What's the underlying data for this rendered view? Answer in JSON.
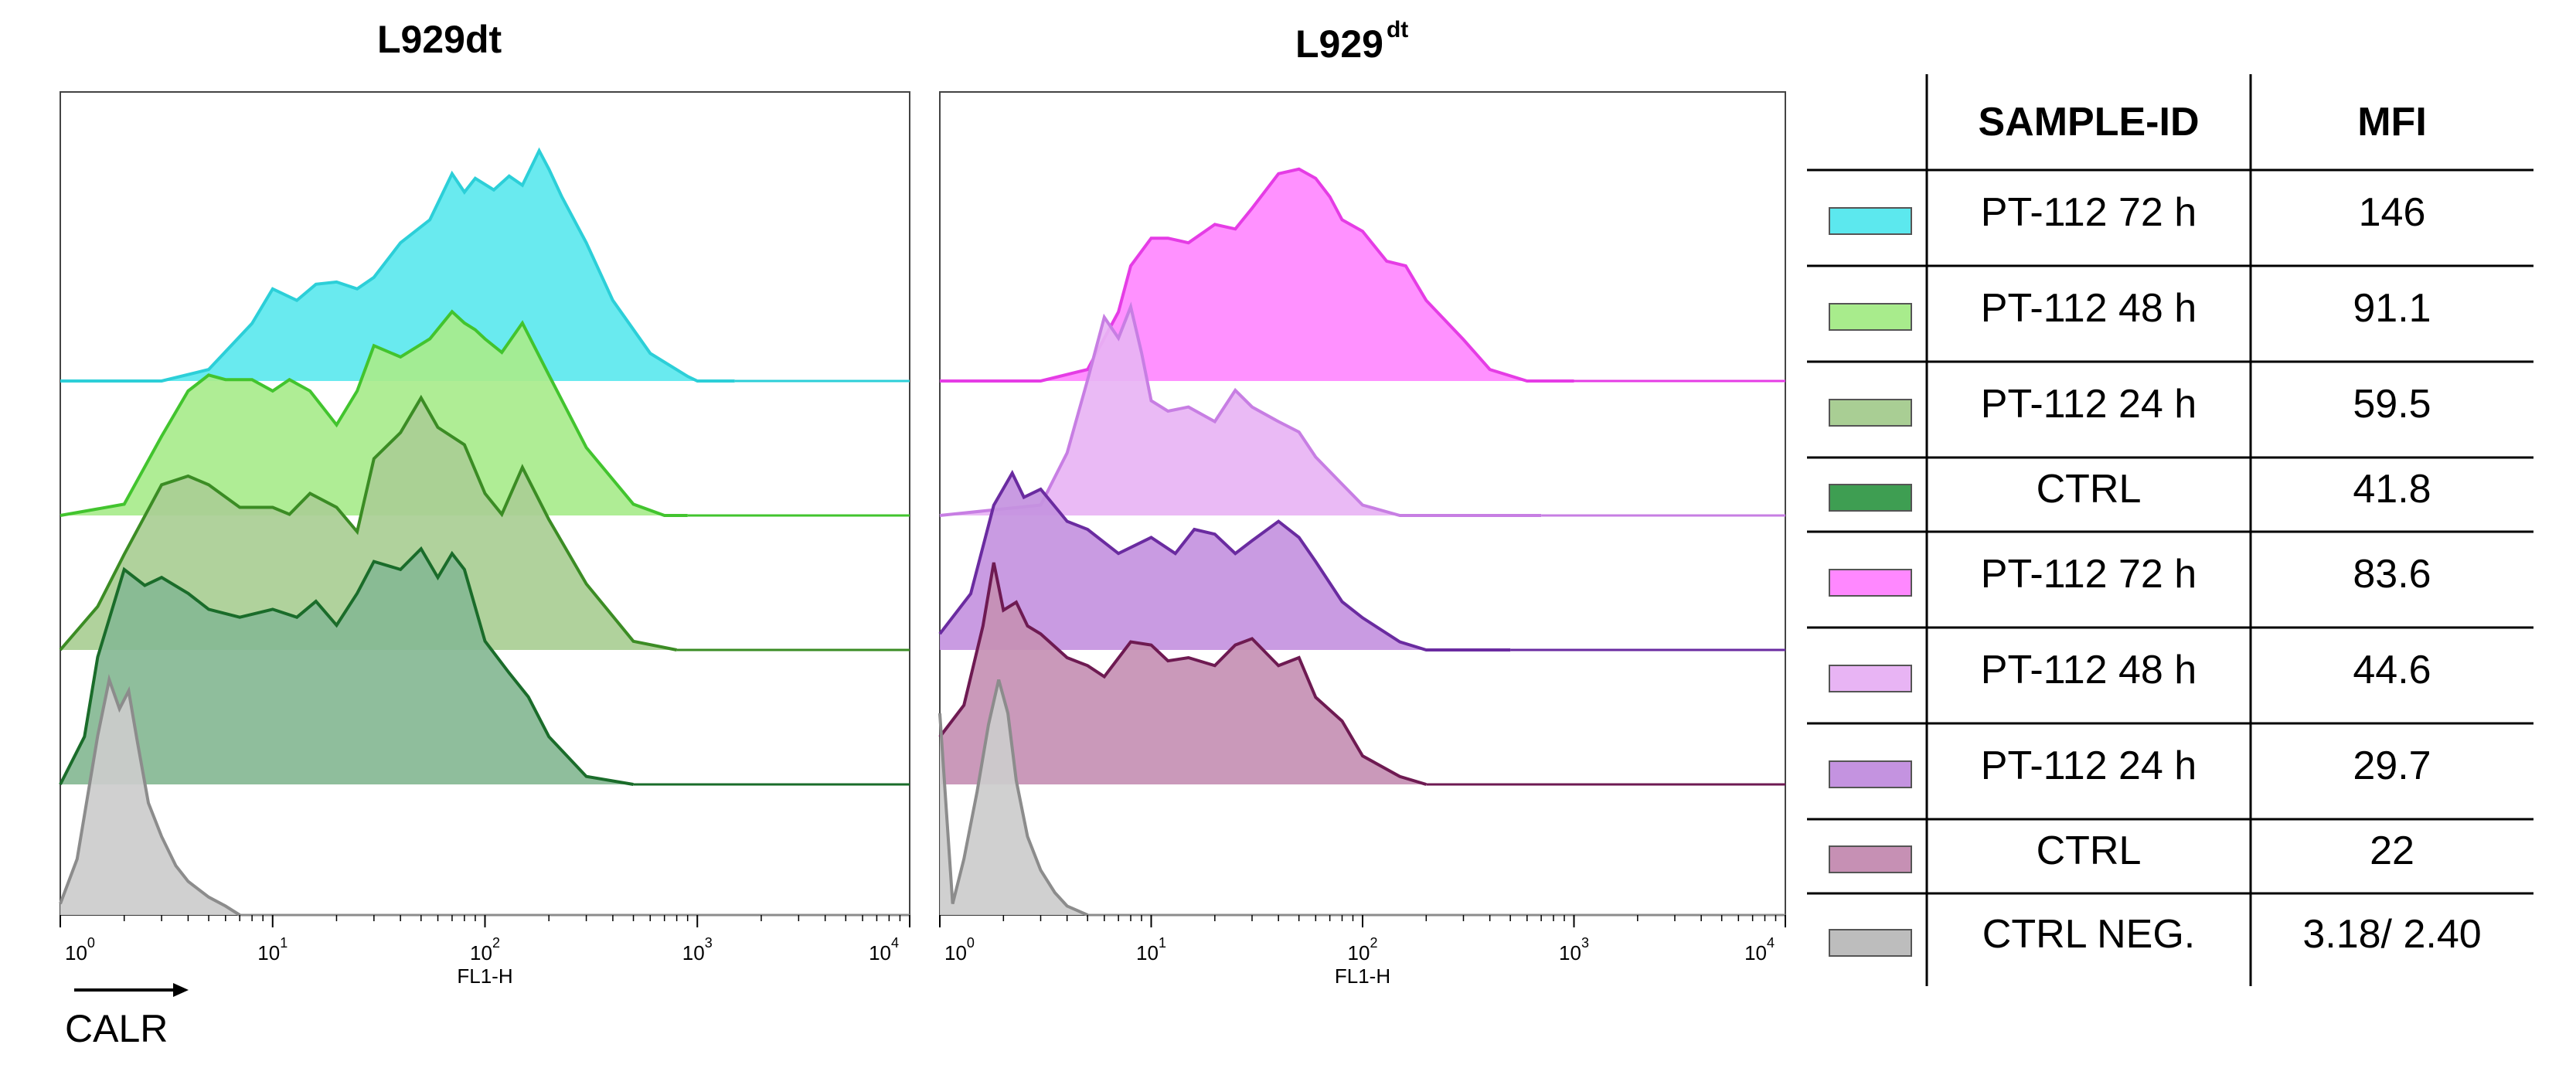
{
  "panels": [
    {
      "title_main": "L929dt",
      "title_sup": ""
    },
    {
      "title_main": "L929",
      "title_sup": "dt"
    }
  ],
  "axis": {
    "x_tick_base": "10",
    "x_tick_exponents": [
      "0",
      "1",
      "2",
      "3",
      "4"
    ],
    "xlabel": "FL1-H",
    "arrow_label": "CALR"
  },
  "table": {
    "header_sample": "SAMPLE-ID",
    "header_mfi": "MFI",
    "rows": [
      {
        "sample": "PT-112 72 h",
        "mfi": "146",
        "color": "#5ce8ee"
      },
      {
        "sample": "PT-112 48 h",
        "mfi": "91.1",
        "color": "#a8ec8c"
      },
      {
        "sample": "PT-112 24 h",
        "mfi": "59.5",
        "color": "#a9ce94"
      },
      {
        "sample": "CTRL",
        "mfi": "41.8",
        "color": "#3e9e52"
      },
      {
        "sample": "PT-112 72 h",
        "mfi": "83.6",
        "color": "#ff88ff"
      },
      {
        "sample": "PT-112 48 h",
        "mfi": "44.6",
        "color": "#e8b4f4"
      },
      {
        "sample": "PT-112 24 h",
        "mfi": "29.7",
        "color": "#c493e0"
      },
      {
        "sample": "CTRL",
        "mfi": "22",
        "color": "#c690b4"
      },
      {
        "sample": "CTRL NEG.",
        "mfi": "3.18/ 2.40",
        "color": "#bdbdbd"
      }
    ]
  },
  "chart_data": [
    {
      "type": "area",
      "title": "L929dt",
      "xlabel": "FL1-H",
      "x_scale": "log",
      "xlim": [
        1,
        10000
      ],
      "series": [
        {
          "color": "#5ce8ee",
          "stroke": "#2ccfd8",
          "x": [
            1,
            3,
            5,
            8,
            10,
            13,
            16,
            20,
            25,
            30,
            40,
            55,
            70,
            80,
            90,
            110,
            130,
            150,
            180,
            200,
            230,
            300,
            400,
            600,
            900,
            1000,
            1500
          ],
          "y": [
            0,
            0,
            0.05,
            0.25,
            0.4,
            0.35,
            0.42,
            0.43,
            0.4,
            0.45,
            0.6,
            0.7,
            0.9,
            0.82,
            0.88,
            0.83,
            0.89,
            0.85,
            1.0,
            0.92,
            0.8,
            0.6,
            0.35,
            0.12,
            0.02,
            0,
            0
          ]
        },
        {
          "color": "#a8ec8c",
          "stroke": "#42c42e",
          "x": [
            1,
            2,
            3,
            4,
            5,
            6,
            8,
            10,
            12,
            15,
            20,
            25,
            30,
            40,
            55,
            70,
            80,
            90,
            100,
            120,
            150,
            200,
            300,
            500,
            700,
            900
          ],
          "y": [
            0,
            0.05,
            0.35,
            0.55,
            0.62,
            0.6,
            0.6,
            0.55,
            0.6,
            0.55,
            0.4,
            0.55,
            0.75,
            0.7,
            0.78,
            0.9,
            0.85,
            0.82,
            0.78,
            0.72,
            0.85,
            0.62,
            0.3,
            0.05,
            0,
            0
          ]
        },
        {
          "color": "#a9ce94",
          "stroke": "#3b8c24",
          "x": [
            1,
            1.5,
            2,
            3,
            4,
            5,
            7,
            10,
            12,
            15,
            20,
            25,
            30,
            40,
            50,
            60,
            80,
            100,
            120,
            150,
            200,
            300,
            500,
            800
          ],
          "y": [
            0,
            0.25,
            0.55,
            0.95,
            1.0,
            0.95,
            0.82,
            0.82,
            0.78,
            0.9,
            0.82,
            0.68,
            1.1,
            1.25,
            1.45,
            1.28,
            1.18,
            0.9,
            0.78,
            1.05,
            0.75,
            0.38,
            0.05,
            0
          ]
        },
        {
          "color": "#85b894",
          "stroke": "#1a6c2a",
          "x": [
            1,
            1.3,
            1.5,
            2,
            2.5,
            3,
            4,
            5,
            7,
            10,
            13,
            16,
            20,
            25,
            30,
            40,
            50,
            60,
            70,
            80,
            100,
            130,
            160,
            200,
            300,
            500
          ],
          "y": [
            0,
            0.3,
            0.8,
            1.35,
            1.25,
            1.3,
            1.2,
            1.1,
            1.05,
            1.1,
            1.05,
            1.15,
            1.0,
            1.2,
            1.4,
            1.35,
            1.48,
            1.3,
            1.45,
            1.35,
            0.9,
            0.7,
            0.55,
            0.3,
            0.05,
            0
          ]
        },
        {
          "color": "#cccccc",
          "stroke": "#8c8c8c",
          "x": [
            1,
            1.2,
            1.5,
            1.7,
            1.9,
            2.1,
            2.3,
            2.6,
            3,
            3.5,
            4,
            5,
            6,
            7
          ],
          "y": [
            0.05,
            0.25,
            0.8,
            1.05,
            0.92,
            1.0,
            0.78,
            0.5,
            0.35,
            0.22,
            0.15,
            0.08,
            0.04,
            0
          ]
        }
      ]
    },
    {
      "type": "area",
      "title": "L929dt",
      "xlabel": "FL1-H",
      "x_scale": "log",
      "xlim": [
        1,
        10000
      ],
      "series": [
        {
          "color": "#ff88ff",
          "stroke": "#e53ce5",
          "x": [
            1,
            3,
            5,
            7,
            8,
            10,
            12,
            15,
            20,
            25,
            30,
            40,
            50,
            60,
            70,
            80,
            100,
            130,
            160,
            200,
            300,
            400,
            600,
            800,
            1000
          ],
          "y": [
            0,
            0,
            0.05,
            0.3,
            0.5,
            0.62,
            0.62,
            0.6,
            0.68,
            0.66,
            0.75,
            0.9,
            0.92,
            0.88,
            0.8,
            0.7,
            0.65,
            0.52,
            0.5,
            0.35,
            0.18,
            0.05,
            0,
            0,
            0
          ]
        },
        {
          "color": "#e8b4f4",
          "stroke": "#c77ee3",
          "x": [
            1,
            3,
            4,
            5,
            6,
            7,
            8,
            9,
            10,
            12,
            15,
            20,
            25,
            30,
            40,
            50,
            60,
            80,
            100,
            150,
            200,
            300,
            500,
            700
          ],
          "y": [
            0,
            0.05,
            0.3,
            0.65,
            0.95,
            0.85,
            1.0,
            0.78,
            0.55,
            0.5,
            0.52,
            0.45,
            0.6,
            0.52,
            0.45,
            0.4,
            0.28,
            0.15,
            0.05,
            0,
            0,
            0,
            0,
            0
          ]
        },
        {
          "color": "#c493e0",
          "stroke": "#6a2ba0",
          "x": [
            1,
            1.4,
            1.8,
            2.2,
            2.5,
            3,
            4,
            5,
            7,
            10,
            13,
            16,
            20,
            25,
            30,
            40,
            50,
            60,
            80,
            100,
            150,
            200,
            300,
            500
          ],
          "y": [
            0.1,
            0.35,
            0.9,
            1.1,
            0.95,
            1.0,
            0.8,
            0.75,
            0.6,
            0.7,
            0.6,
            0.75,
            0.72,
            0.6,
            0.68,
            0.8,
            0.7,
            0.55,
            0.3,
            0.2,
            0.05,
            0,
            0,
            0
          ]
        },
        {
          "color": "#c690b4",
          "stroke": "#6e1a52",
          "x": [
            1,
            1.3,
            1.6,
            1.8,
            2,
            2.3,
            2.6,
            3,
            4,
            5,
            6,
            8,
            10,
            12,
            15,
            20,
            25,
            30,
            40,
            50,
            60,
            80,
            100,
            150,
            200
          ],
          "y": [
            0.3,
            0.5,
            1.0,
            1.4,
            1.1,
            1.15,
            1.0,
            0.95,
            0.8,
            0.75,
            0.68,
            0.9,
            0.88,
            0.78,
            0.8,
            0.75,
            0.88,
            0.92,
            0.75,
            0.8,
            0.55,
            0.4,
            0.18,
            0.05,
            0
          ]
        },
        {
          "color": "#cccccc",
          "stroke": "#8c8c8c",
          "x": [
            1,
            1.15,
            1.3,
            1.5,
            1.7,
            1.9,
            2.1,
            2.3,
            2.6,
            3,
            3.5,
            4,
            5
          ],
          "y": [
            0.9,
            0.05,
            0.25,
            0.55,
            0.85,
            1.05,
            0.9,
            0.6,
            0.35,
            0.2,
            0.1,
            0.04,
            0
          ]
        }
      ]
    }
  ]
}
